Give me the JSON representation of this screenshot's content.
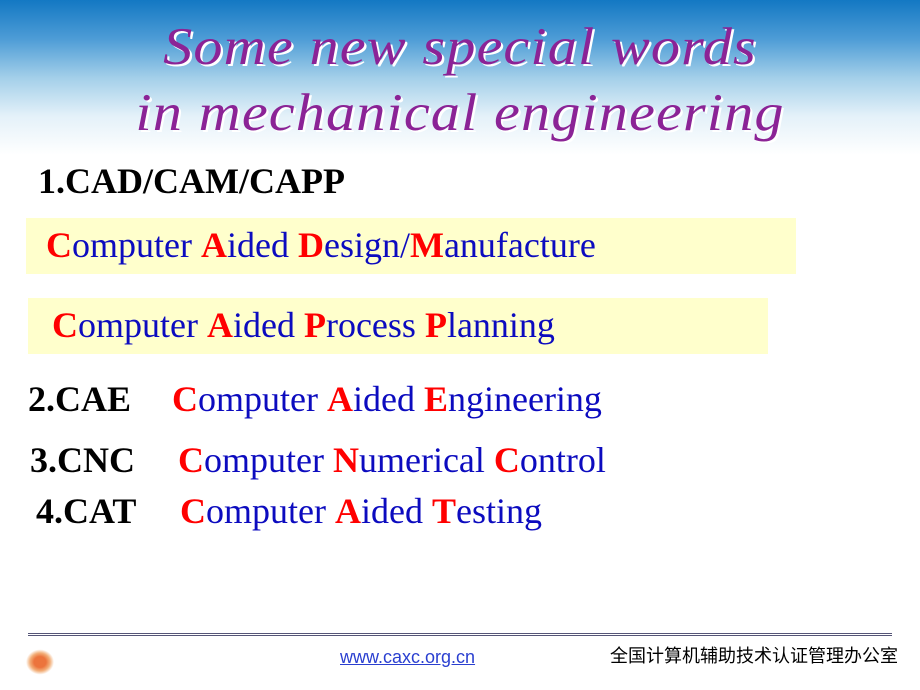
{
  "title_line1": "Some new special words",
  "title_line2": "in mechanical engineering",
  "items": [
    {
      "label": "1.CAD/CAM/CAPP",
      "expansions": [
        [
          {
            "t": "C",
            "c": "red"
          },
          {
            "t": "omputer ",
            "c": "blue"
          },
          {
            "t": "A",
            "c": "red"
          },
          {
            "t": "ided ",
            "c": "blue"
          },
          {
            "t": "D",
            "c": "red"
          },
          {
            "t": "esign/",
            "c": "blue"
          },
          {
            "t": "M",
            "c": "red"
          },
          {
            "t": "anufacture",
            "c": "blue"
          }
        ],
        [
          {
            "t": "C",
            "c": "red"
          },
          {
            "t": "omputer ",
            "c": "blue"
          },
          {
            "t": "A",
            "c": "red"
          },
          {
            "t": "ided ",
            "c": "blue"
          },
          {
            "t": "P",
            "c": "red"
          },
          {
            "t": "rocess ",
            "c": "blue"
          },
          {
            "t": "P",
            "c": "red"
          },
          {
            "t": "lanning",
            "c": "blue"
          }
        ]
      ]
    },
    {
      "label": "2.CAE",
      "expansions": [
        [
          {
            "t": "C",
            "c": "red"
          },
          {
            "t": "omputer ",
            "c": "blue"
          },
          {
            "t": "A",
            "c": "red"
          },
          {
            "t": "ided ",
            "c": "blue"
          },
          {
            "t": "E",
            "c": "red"
          },
          {
            "t": "ngineering",
            "c": "blue"
          }
        ]
      ]
    },
    {
      "label": "3.CNC",
      "expansions": [
        [
          {
            "t": "C",
            "c": "red"
          },
          {
            "t": "omputer ",
            "c": "blue"
          },
          {
            "t": "N",
            "c": "red"
          },
          {
            "t": "umerical ",
            "c": "blue"
          },
          {
            "t": "C",
            "c": "red"
          },
          {
            "t": "ontrol",
            "c": "blue"
          }
        ]
      ]
    },
    {
      "label": "4.CAT",
      "expansions": [
        [
          {
            "t": "C",
            "c": "red"
          },
          {
            "t": "omputer ",
            "c": "blue"
          },
          {
            "t": "A",
            "c": "red"
          },
          {
            "t": "ided ",
            "c": "blue"
          },
          {
            "t": "T",
            "c": "red"
          },
          {
            "t": "esting",
            "c": "blue"
          }
        ]
      ]
    }
  ],
  "footer": {
    "link": "www.caxc.org.cn",
    "text": "全国计算机辅助技术认证管理办公室"
  },
  "colors": {
    "title": "#8b2396",
    "red": "#ff0000",
    "blue": "#0c0bbf",
    "yellow_bg": "#ffffcc",
    "gradient_top": "#1378c3",
    "gradient_bottom": "#ffffff",
    "link": "#2a3fd0"
  },
  "fonts": {
    "title_size": 53,
    "title_style": "italic",
    "body_size": 36,
    "footer_size": 18
  }
}
